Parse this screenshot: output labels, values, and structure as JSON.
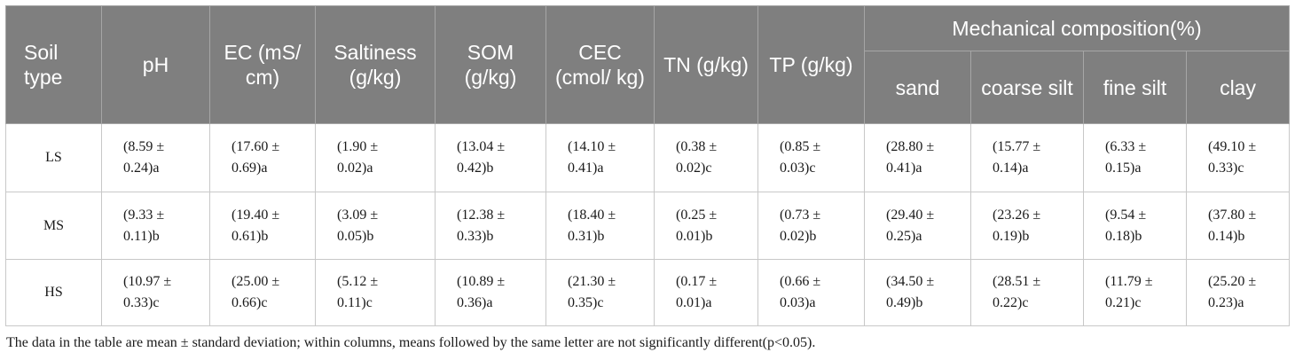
{
  "headers": {
    "soil_type": "Soil type",
    "ph": "pH",
    "ec": "EC (mS/ cm)",
    "saltiness": "Saltiness (g/kg)",
    "som": "SOM (g/kg)",
    "cec": "CEC (cmol/ kg)",
    "tn": "TN (g/kg)",
    "tp": "TP (g/kg)",
    "mechanical": "Mechanical composition(%)",
    "sand": "sand",
    "coarse_silt": "coarse silt",
    "fine_silt": "fine silt",
    "clay": "clay"
  },
  "rows": [
    {
      "label": "LS",
      "cells": [
        [
          "(8.59 ±",
          "0.24)a"
        ],
        [
          "(17.60 ±",
          "0.69)a"
        ],
        [
          "(1.90 ±",
          "0.02)a"
        ],
        [
          "(13.04 ±",
          "0.42)b"
        ],
        [
          "(14.10 ±",
          "0.41)a"
        ],
        [
          "(0.38 ±",
          "0.02)c"
        ],
        [
          "(0.85 ±",
          "0.03)c"
        ],
        [
          "(28.80 ±",
          "0.41)a"
        ],
        [
          "(15.77 ±",
          "0.14)a"
        ],
        [
          "(6.33 ±",
          "0.15)a"
        ],
        [
          "(49.10 ±",
          "0.33)c"
        ]
      ]
    },
    {
      "label": "MS",
      "cells": [
        [
          "(9.33 ±",
          "0.11)b"
        ],
        [
          "(19.40 ±",
          "0.61)b"
        ],
        [
          "(3.09 ±",
          "0.05)b"
        ],
        [
          "(12.38 ±",
          "0.33)b"
        ],
        [
          "(18.40 ±",
          "0.31)b"
        ],
        [
          "(0.25 ±",
          "0.01)b"
        ],
        [
          "(0.73 ±",
          "0.02)b"
        ],
        [
          "(29.40 ±",
          "0.25)a"
        ],
        [
          "(23.26 ±",
          "0.19)b"
        ],
        [
          "(9.54 ±",
          "0.18)b"
        ],
        [
          "(37.80 ±",
          "0.14)b"
        ]
      ]
    },
    {
      "label": "HS",
      "cells": [
        [
          "(10.97 ±",
          "0.33)c"
        ],
        [
          "(25.00 ±",
          "0.66)c"
        ],
        [
          "(5.12 ±",
          "0.11)c"
        ],
        [
          "(10.89 ±",
          "0.36)a"
        ],
        [
          "(21.30 ±",
          "0.35)c"
        ],
        [
          "(0.17 ±",
          "0.01)a"
        ],
        [
          "(0.66 ±",
          "0.03)a"
        ],
        [
          "(34.50 ±",
          "0.49)b"
        ],
        [
          "(28.51 ±",
          "0.22)c"
        ],
        [
          "(11.79 ±",
          "0.21)c"
        ],
        [
          "(25.20 ±",
          "0.23)a"
        ]
      ]
    }
  ],
  "footnote": "The data in the table are mean ± standard deviation; within columns, means followed by the same letter are not significantly different(p<0.05)."
}
